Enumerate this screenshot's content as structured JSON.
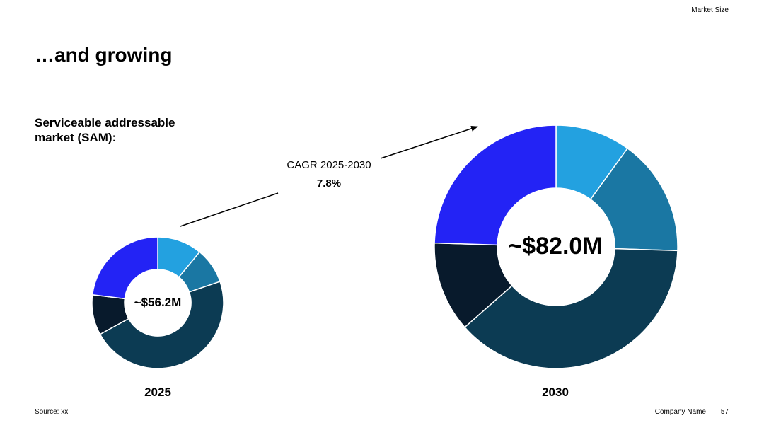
{
  "header": {
    "section_tag": "Market Size",
    "title": "…and growing",
    "subtitle": "Serviceable addressable market (SAM):"
  },
  "cagr": {
    "label": "CAGR 2025-2030",
    "value": "7.8%"
  },
  "chart_data": [
    {
      "type": "pie",
      "variant": "donut",
      "category": "2025",
      "center_label": "~$56.2M",
      "total": 56.2,
      "unit": "$M",
      "slice_share_percent": [
        10,
        8,
        43,
        9,
        21
      ],
      "slice_colors": [
        "#23a1e0",
        "#1a77a3",
        "#0c3b53",
        "#081a2c",
        "#2323f5"
      ]
    },
    {
      "type": "pie",
      "variant": "donut",
      "category": "2030",
      "center_label": "~$82.0M",
      "total": 82.0,
      "unit": "$M",
      "slice_share_percent": [
        10,
        15.5,
        38,
        12,
        24.5
      ],
      "slice_colors": [
        "#23a1e0",
        "#1a77a3",
        "#0c3b53",
        "#081a2c",
        "#2323f5"
      ]
    }
  ],
  "footer": {
    "source": "Source: xx",
    "company": "Company Name",
    "page_number": "57"
  }
}
